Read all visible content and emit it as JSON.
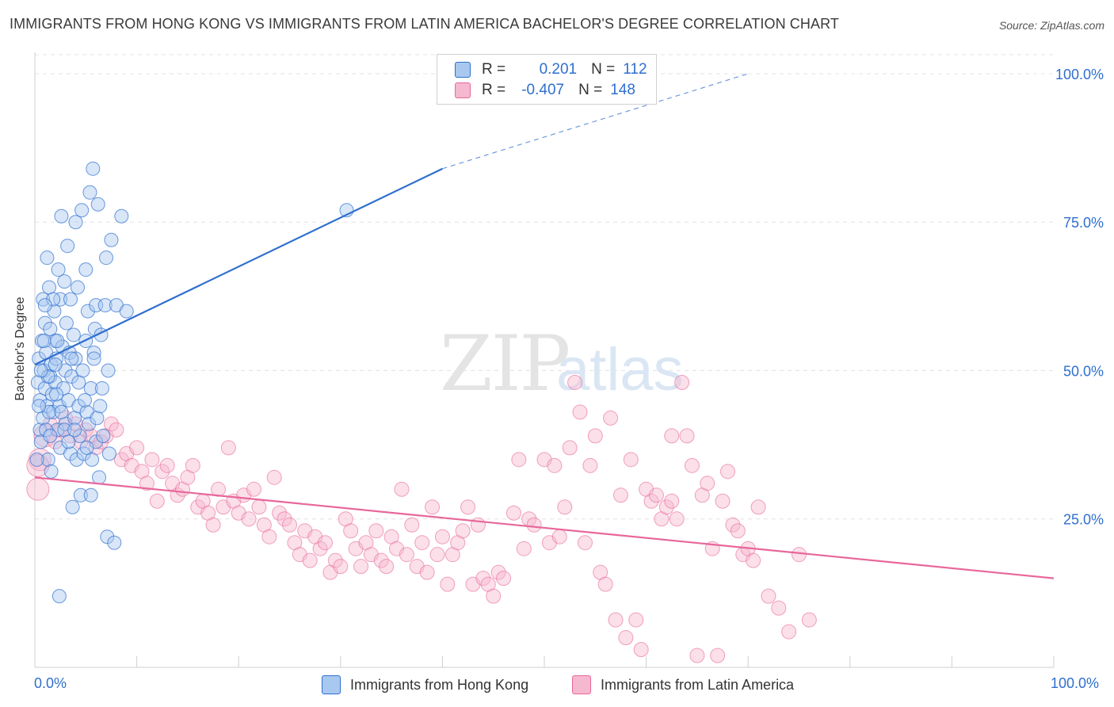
{
  "title": "IMMIGRANTS FROM HONG KONG VS IMMIGRANTS FROM LATIN AMERICA BACHELOR'S DEGREE CORRELATION CHART",
  "source": "Source: ZipAtlas.com",
  "watermark": "ZIPatlas",
  "colors": {
    "blue": "#2f6fcf",
    "blue_fill": "#a9c8f0",
    "pink": "#e8679a",
    "pink_fill": "#f6b8cf",
    "grid": "#e3e3e3",
    "axis_label": "#2f6fcf"
  },
  "legend": {
    "rows": [
      {
        "r_label": "R =",
        "r_value": "0.201",
        "n_label": "N =",
        "n_value": "112"
      },
      {
        "r_label": "R =",
        "r_value": "-0.407",
        "n_label": "N =",
        "n_value": "148"
      }
    ]
  },
  "bottom_legend": {
    "items": [
      {
        "label": "Immigrants from Hong Kong"
      },
      {
        "label": "Immigrants from Latin America"
      }
    ]
  },
  "chart_data": {
    "type": "scatter",
    "title": "IMMIGRANTS FROM HONG KONG VS IMMIGRANTS FROM LATIN AMERICA BACHELOR'S DEGREE CORRELATION CHART",
    "xlabel": "",
    "ylabel": "Bachelor's Degree",
    "xlim": [
      0,
      100
    ],
    "ylim": [
      0,
      102
    ],
    "x_tick_labels": [
      "0.0%",
      "100.0%"
    ],
    "y_tick_labels": [
      "25.0%",
      "50.0%",
      "75.0%",
      "100.0%"
    ],
    "y_ticks": [
      25,
      50,
      75,
      100
    ],
    "grid": true,
    "legend_position": "top-center",
    "series": [
      {
        "name": "Immigrants from Hong Kong",
        "color": "#2f6fcf",
        "trend": {
          "x": [
            0,
            40
          ],
          "y": [
            51,
            84
          ],
          "dashed_to": [
            70,
            100
          ]
        },
        "points": [
          [
            0.3,
            48
          ],
          [
            0.4,
            52
          ],
          [
            0.5,
            45
          ],
          [
            0.5,
            40
          ],
          [
            0.6,
            38
          ],
          [
            0.7,
            55
          ],
          [
            0.8,
            62
          ],
          [
            0.8,
            42
          ],
          [
            0.9,
            50
          ],
          [
            1.0,
            47
          ],
          [
            1.0,
            58
          ],
          [
            1.1,
            53
          ],
          [
            1.2,
            69
          ],
          [
            1.2,
            44
          ],
          [
            1.3,
            35
          ],
          [
            1.4,
            64
          ],
          [
            1.5,
            49
          ],
          [
            1.5,
            57
          ],
          [
            1.6,
            51
          ],
          [
            1.7,
            46
          ],
          [
            1.8,
            43
          ],
          [
            1.9,
            60
          ],
          [
            2.0,
            55
          ],
          [
            2.0,
            48
          ],
          [
            2.1,
            52
          ],
          [
            2.2,
            40
          ],
          [
            2.3,
            67
          ],
          [
            2.4,
            44
          ],
          [
            2.5,
            62
          ],
          [
            2.5,
            37
          ],
          [
            2.6,
            76
          ],
          [
            2.7,
            54
          ],
          [
            2.8,
            47
          ],
          [
            2.9,
            65
          ],
          [
            3.0,
            50
          ],
          [
            3.0,
            41
          ],
          [
            3.1,
            58
          ],
          [
            3.2,
            71
          ],
          [
            3.3,
            45
          ],
          [
            3.4,
            53
          ],
          [
            3.5,
            36
          ],
          [
            3.5,
            62
          ],
          [
            3.6,
            49
          ],
          [
            3.7,
            27
          ],
          [
            3.8,
            56
          ],
          [
            3.9,
            42
          ],
          [
            4.0,
            75
          ],
          [
            4.0,
            52
          ],
          [
            4.1,
            35
          ],
          [
            4.2,
            64
          ],
          [
            4.3,
            44
          ],
          [
            4.4,
            39
          ],
          [
            4.5,
            29
          ],
          [
            4.6,
            77
          ],
          [
            4.7,
            50
          ],
          [
            4.8,
            36
          ],
          [
            5.0,
            67
          ],
          [
            5.0,
            55
          ],
          [
            5.1,
            43
          ],
          [
            5.2,
            60
          ],
          [
            5.3,
            41
          ],
          [
            5.4,
            80
          ],
          [
            5.5,
            47
          ],
          [
            5.5,
            29
          ],
          [
            5.6,
            35
          ],
          [
            5.7,
            84
          ],
          [
            5.8,
            53
          ],
          [
            5.9,
            57
          ],
          [
            6.0,
            38
          ],
          [
            6.0,
            61
          ],
          [
            6.1,
            42
          ],
          [
            6.2,
            78
          ],
          [
            6.3,
            32
          ],
          [
            6.4,
            44
          ],
          [
            6.5,
            56
          ],
          [
            6.7,
            39
          ],
          [
            6.9,
            61
          ],
          [
            7.0,
            69
          ],
          [
            7.1,
            22
          ],
          [
            7.2,
            50
          ],
          [
            7.3,
            36
          ],
          [
            7.5,
            72
          ],
          [
            7.8,
            21
          ],
          [
            8.0,
            61
          ],
          [
            8.5,
            76
          ],
          [
            9.0,
            60
          ],
          [
            2.4,
            12
          ],
          [
            1.1,
            40
          ],
          [
            1.6,
            33
          ],
          [
            0.9,
            55
          ],
          [
            1.3,
            49
          ],
          [
            2.1,
            46
          ],
          [
            2.9,
            40
          ],
          [
            3.6,
            52
          ],
          [
            1.8,
            62
          ],
          [
            2.2,
            55
          ],
          [
            4.9,
            45
          ],
          [
            5.8,
            52
          ],
          [
            3.3,
            38
          ],
          [
            1.4,
            43
          ],
          [
            30.6,
            77
          ],
          [
            0.2,
            35
          ],
          [
            0.6,
            50
          ],
          [
            1.0,
            61
          ],
          [
            1.5,
            39
          ],
          [
            2.6,
            43
          ],
          [
            3.9,
            40
          ],
          [
            4.3,
            48
          ],
          [
            5.1,
            37
          ],
          [
            6.6,
            47
          ],
          [
            0.4,
            44
          ],
          [
            2.0,
            51
          ]
        ]
      },
      {
        "name": "Immigrants from Latin America",
        "color": "#e8679a",
        "trend": {
          "x": [
            0,
            100
          ],
          "y": [
            32,
            15
          ]
        },
        "points": [
          [
            0.3,
            30
          ],
          [
            0.5,
            35
          ],
          [
            1.0,
            39
          ],
          [
            1.5,
            41
          ],
          [
            2.0,
            38
          ],
          [
            2.5,
            40
          ],
          [
            3.0,
            42
          ],
          [
            3.5,
            39
          ],
          [
            4.0,
            41
          ],
          [
            4.5,
            38
          ],
          [
            5.0,
            40
          ],
          [
            5.5,
            39
          ],
          [
            6.0,
            37
          ],
          [
            6.5,
            38
          ],
          [
            7.0,
            39
          ],
          [
            7.5,
            41
          ],
          [
            8.0,
            40
          ],
          [
            8.5,
            35
          ],
          [
            9.0,
            36
          ],
          [
            9.5,
            34
          ],
          [
            10.0,
            37
          ],
          [
            10.5,
            33
          ],
          [
            11.0,
            31
          ],
          [
            11.5,
            35
          ],
          [
            12.0,
            28
          ],
          [
            12.5,
            33
          ],
          [
            13.0,
            34
          ],
          [
            13.5,
            31
          ],
          [
            14.0,
            29
          ],
          [
            14.5,
            30
          ],
          [
            15.0,
            32
          ],
          [
            15.5,
            34
          ],
          [
            16.0,
            27
          ],
          [
            16.5,
            28
          ],
          [
            17.0,
            26
          ],
          [
            17.5,
            24
          ],
          [
            18.0,
            30
          ],
          [
            18.5,
            27
          ],
          [
            19.0,
            37
          ],
          [
            19.5,
            28
          ],
          [
            20.0,
            26
          ],
          [
            20.5,
            29
          ],
          [
            21.0,
            25
          ],
          [
            21.5,
            30
          ],
          [
            22.0,
            27
          ],
          [
            22.5,
            24
          ],
          [
            23.0,
            22
          ],
          [
            23.5,
            32
          ],
          [
            24.0,
            26
          ],
          [
            24.5,
            25
          ],
          [
            25.0,
            24
          ],
          [
            25.5,
            21
          ],
          [
            26.0,
            19
          ],
          [
            26.5,
            23
          ],
          [
            27.0,
            18
          ],
          [
            27.5,
            22
          ],
          [
            28.0,
            20
          ],
          [
            28.5,
            21
          ],
          [
            29.0,
            16
          ],
          [
            29.5,
            18
          ],
          [
            30.0,
            17
          ],
          [
            30.5,
            25
          ],
          [
            31.0,
            23
          ],
          [
            31.5,
            20
          ],
          [
            32.0,
            17
          ],
          [
            32.5,
            21
          ],
          [
            33.0,
            19
          ],
          [
            33.5,
            23
          ],
          [
            34.0,
            18
          ],
          [
            34.5,
            17
          ],
          [
            35.0,
            22
          ],
          [
            35.5,
            20
          ],
          [
            36.0,
            30
          ],
          [
            36.5,
            19
          ],
          [
            37.0,
            24
          ],
          [
            37.5,
            17
          ],
          [
            38.0,
            21
          ],
          [
            38.5,
            16
          ],
          [
            39.0,
            27
          ],
          [
            39.5,
            19
          ],
          [
            40.0,
            22
          ],
          [
            40.5,
            14
          ],
          [
            41.0,
            19
          ],
          [
            41.5,
            21
          ],
          [
            42.0,
            23
          ],
          [
            42.5,
            27
          ],
          [
            43.0,
            14
          ],
          [
            43.5,
            24
          ],
          [
            44.0,
            15
          ],
          [
            44.5,
            14
          ],
          [
            45.0,
            12
          ],
          [
            45.5,
            16
          ],
          [
            46.0,
            15
          ],
          [
            47.0,
            26
          ],
          [
            47.5,
            35
          ],
          [
            48.0,
            20
          ],
          [
            48.5,
            25
          ],
          [
            49.0,
            24
          ],
          [
            50.0,
            35
          ],
          [
            50.5,
            21
          ],
          [
            51.0,
            34
          ],
          [
            51.5,
            22
          ],
          [
            52.0,
            27
          ],
          [
            52.5,
            37
          ],
          [
            53.0,
            48
          ],
          [
            53.5,
            43
          ],
          [
            54.0,
            21
          ],
          [
            54.5,
            34
          ],
          [
            55.0,
            39
          ],
          [
            55.5,
            16
          ],
          [
            56.0,
            14
          ],
          [
            56.5,
            42
          ],
          [
            57.0,
            8
          ],
          [
            57.5,
            29
          ],
          [
            58.0,
            5
          ],
          [
            58.5,
            35
          ],
          [
            59.0,
            8
          ],
          [
            59.5,
            3
          ],
          [
            60.0,
            30
          ],
          [
            60.5,
            28
          ],
          [
            61.0,
            29
          ],
          [
            61.5,
            25
          ],
          [
            62.0,
            27
          ],
          [
            62.5,
            39
          ],
          [
            63.0,
            25
          ],
          [
            63.5,
            48
          ],
          [
            64.0,
            39
          ],
          [
            64.5,
            34
          ],
          [
            65.0,
            2
          ],
          [
            65.5,
            29
          ],
          [
            66.0,
            31
          ],
          [
            66.5,
            20
          ],
          [
            67.0,
            2
          ],
          [
            67.5,
            28
          ],
          [
            68.0,
            33
          ],
          [
            68.5,
            24
          ],
          [
            69.0,
            23
          ],
          [
            69.5,
            19
          ],
          [
            70.0,
            20
          ],
          [
            70.5,
            18
          ],
          [
            71.0,
            27
          ],
          [
            72.0,
            12
          ],
          [
            73.0,
            10
          ],
          [
            74.0,
            6
          ],
          [
            75.0,
            19
          ],
          [
            76.0,
            8
          ],
          [
            0.3,
            34
          ],
          [
            62.5,
            28
          ]
        ]
      }
    ]
  }
}
